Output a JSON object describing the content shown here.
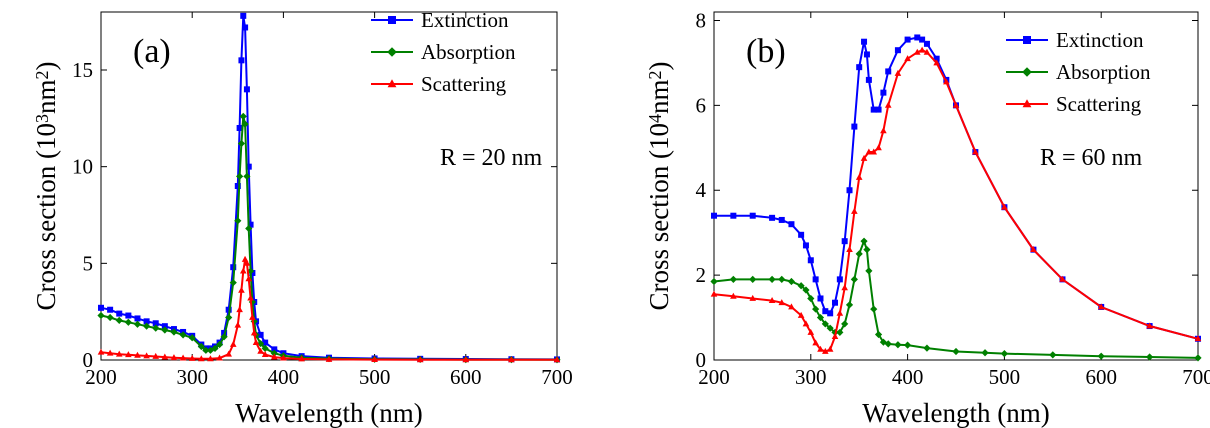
{
  "chart_data": [
    {
      "type": "line",
      "panel_label": "(a)",
      "annotation": "R = 20 nm",
      "xlabel": "Wavelength (nm)",
      "ylabel": "Cross section (10",
      "ylabel_exp": "3",
      "ylabel_unit": "nm",
      "ylabel_unit_exp": "2",
      "ylabel_close": ")",
      "xlim": [
        200,
        700
      ],
      "ylim": [
        0,
        18
      ],
      "xticks": [
        200,
        300,
        400,
        500,
        600,
        700
      ],
      "yticks": [
        0,
        5,
        10,
        15
      ],
      "xtick_labels": [
        "200",
        "300",
        "400",
        "500",
        "600",
        "700"
      ],
      "ytick_labels": [
        "0",
        "5",
        "10",
        "15"
      ],
      "legend_position": "top-right",
      "legend": [
        "Extinction",
        "Absorption",
        "Scattering"
      ],
      "series": [
        {
          "name": "Extinction",
          "color": "#0000ff",
          "marker": "square",
          "x": [
            200,
            210,
            220,
            230,
            240,
            250,
            260,
            270,
            280,
            290,
            300,
            310,
            315,
            320,
            325,
            330,
            335,
            340,
            345,
            350,
            352,
            354,
            356,
            358,
            360,
            362,
            364,
            366,
            368,
            370,
            375,
            380,
            390,
            400,
            420,
            450,
            500,
            550,
            600,
            650,
            700
          ],
          "y": [
            2.7,
            2.6,
            2.4,
            2.3,
            2.15,
            2.0,
            1.9,
            1.75,
            1.6,
            1.45,
            1.25,
            0.8,
            0.6,
            0.6,
            0.7,
            0.9,
            1.4,
            2.6,
            4.8,
            9.0,
            12.0,
            15.5,
            17.8,
            17.2,
            14.0,
            10.0,
            7.0,
            4.5,
            3.0,
            2.0,
            1.3,
            0.9,
            0.55,
            0.35,
            0.2,
            0.12,
            0.08,
            0.06,
            0.05,
            0.04,
            0.03
          ]
        },
        {
          "name": "Absorption",
          "color": "#008000",
          "marker": "diamond",
          "x": [
            200,
            210,
            220,
            230,
            240,
            250,
            260,
            270,
            280,
            290,
            300,
            310,
            315,
            320,
            325,
            330,
            335,
            340,
            345,
            350,
            352,
            354,
            356,
            358,
            360,
            362,
            364,
            366,
            368,
            370,
            375,
            380,
            390,
            400,
            420,
            450,
            500,
            550,
            600,
            650,
            700
          ],
          "y": [
            2.3,
            2.2,
            2.05,
            1.95,
            1.85,
            1.75,
            1.65,
            1.55,
            1.45,
            1.3,
            1.15,
            0.7,
            0.5,
            0.5,
            0.6,
            0.8,
            1.2,
            2.2,
            4.0,
            7.2,
            9.5,
            11.2,
            12.6,
            12.2,
            9.5,
            6.8,
            4.6,
            3.0,
            2.0,
            1.3,
            0.85,
            0.6,
            0.35,
            0.22,
            0.12,
            0.07,
            0.04,
            0.03,
            0.02,
            0.02,
            0.01
          ]
        },
        {
          "name": "Scattering",
          "color": "#ff0000",
          "marker": "triangle",
          "x": [
            200,
            210,
            220,
            230,
            240,
            250,
            260,
            270,
            280,
            290,
            300,
            310,
            320,
            330,
            340,
            345,
            350,
            352,
            354,
            356,
            358,
            360,
            362,
            364,
            366,
            368,
            370,
            375,
            380,
            390,
            400,
            420,
            450,
            500,
            550,
            600,
            650,
            700
          ],
          "y": [
            0.4,
            0.35,
            0.3,
            0.27,
            0.24,
            0.21,
            0.18,
            0.15,
            0.12,
            0.1,
            0.08,
            0.06,
            0.06,
            0.1,
            0.3,
            0.8,
            1.8,
            2.6,
            3.6,
            4.6,
            5.2,
            5.0,
            4.2,
            3.2,
            2.2,
            1.4,
            0.9,
            0.45,
            0.28,
            0.15,
            0.1,
            0.05,
            0.03,
            0.02,
            0.01,
            0.01,
            0.01,
            0.01
          ]
        }
      ]
    },
    {
      "type": "line",
      "panel_label": "(b)",
      "annotation": "R = 60 nm",
      "xlabel": "Wavelength (nm)",
      "ylabel": "Cross section (10",
      "ylabel_exp": "4",
      "ylabel_unit": "nm",
      "ylabel_unit_exp": "2",
      "ylabel_close": ")",
      "xlim": [
        200,
        700
      ],
      "ylim": [
        0,
        8.2
      ],
      "xticks": [
        200,
        300,
        400,
        500,
        600,
        700
      ],
      "yticks": [
        0,
        2,
        4,
        6,
        8
      ],
      "xtick_labels": [
        "200",
        "300",
        "400",
        "500",
        "600",
        "700"
      ],
      "ytick_labels": [
        "0",
        "2",
        "4",
        "6",
        "8"
      ],
      "legend_position": "top-right",
      "legend": [
        "Extinction",
        "Absorption",
        "Scattering"
      ],
      "series": [
        {
          "name": "Extinction",
          "color": "#0000ff",
          "marker": "square",
          "x": [
            200,
            220,
            240,
            260,
            270,
            280,
            290,
            295,
            300,
            305,
            310,
            315,
            320,
            325,
            330,
            335,
            340,
            345,
            350,
            355,
            358,
            360,
            365,
            370,
            375,
            380,
            390,
            400,
            410,
            415,
            420,
            430,
            440,
            450,
            470,
            500,
            530,
            560,
            600,
            650,
            700
          ],
          "y": [
            3.4,
            3.4,
            3.4,
            3.35,
            3.3,
            3.2,
            2.95,
            2.7,
            2.35,
            1.9,
            1.45,
            1.15,
            1.1,
            1.35,
            1.9,
            2.8,
            4.0,
            5.5,
            6.9,
            7.5,
            7.2,
            6.6,
            5.9,
            5.9,
            6.3,
            6.8,
            7.3,
            7.55,
            7.6,
            7.55,
            7.45,
            7.1,
            6.6,
            6.0,
            4.9,
            3.6,
            2.6,
            1.9,
            1.25,
            0.8,
            0.5
          ]
        },
        {
          "name": "Absorption",
          "color": "#008000",
          "marker": "diamond",
          "x": [
            200,
            220,
            240,
            260,
            270,
            280,
            290,
            295,
            300,
            305,
            310,
            315,
            320,
            325,
            330,
            335,
            340,
            345,
            350,
            355,
            358,
            360,
            365,
            370,
            375,
            380,
            390,
            400,
            420,
            450,
            480,
            500,
            550,
            600,
            650,
            700
          ],
          "y": [
            1.85,
            1.9,
            1.9,
            1.9,
            1.9,
            1.85,
            1.75,
            1.65,
            1.45,
            1.2,
            1.0,
            0.85,
            0.75,
            0.65,
            0.65,
            0.85,
            1.3,
            1.9,
            2.5,
            2.8,
            2.6,
            2.1,
            1.2,
            0.6,
            0.42,
            0.38,
            0.36,
            0.35,
            0.28,
            0.2,
            0.17,
            0.15,
            0.12,
            0.09,
            0.07,
            0.05
          ]
        },
        {
          "name": "Scattering",
          "color": "#ff0000",
          "marker": "triangle",
          "x": [
            200,
            220,
            240,
            260,
            270,
            280,
            290,
            295,
            300,
            305,
            310,
            315,
            320,
            325,
            330,
            335,
            340,
            345,
            350,
            355,
            360,
            365,
            370,
            375,
            380,
            390,
            400,
            410,
            415,
            420,
            430,
            440,
            450,
            470,
            500,
            530,
            560,
            600,
            650,
            700
          ],
          "y": [
            1.55,
            1.5,
            1.45,
            1.4,
            1.35,
            1.25,
            1.05,
            0.85,
            0.65,
            0.4,
            0.25,
            0.2,
            0.25,
            0.55,
            1.1,
            1.7,
            2.6,
            3.5,
            4.3,
            4.75,
            4.9,
            4.9,
            5.0,
            5.4,
            6.0,
            6.75,
            7.1,
            7.25,
            7.3,
            7.25,
            7.0,
            6.55,
            6.0,
            4.9,
            3.6,
            2.6,
            1.9,
            1.25,
            0.8,
            0.5
          ]
        }
      ]
    }
  ]
}
